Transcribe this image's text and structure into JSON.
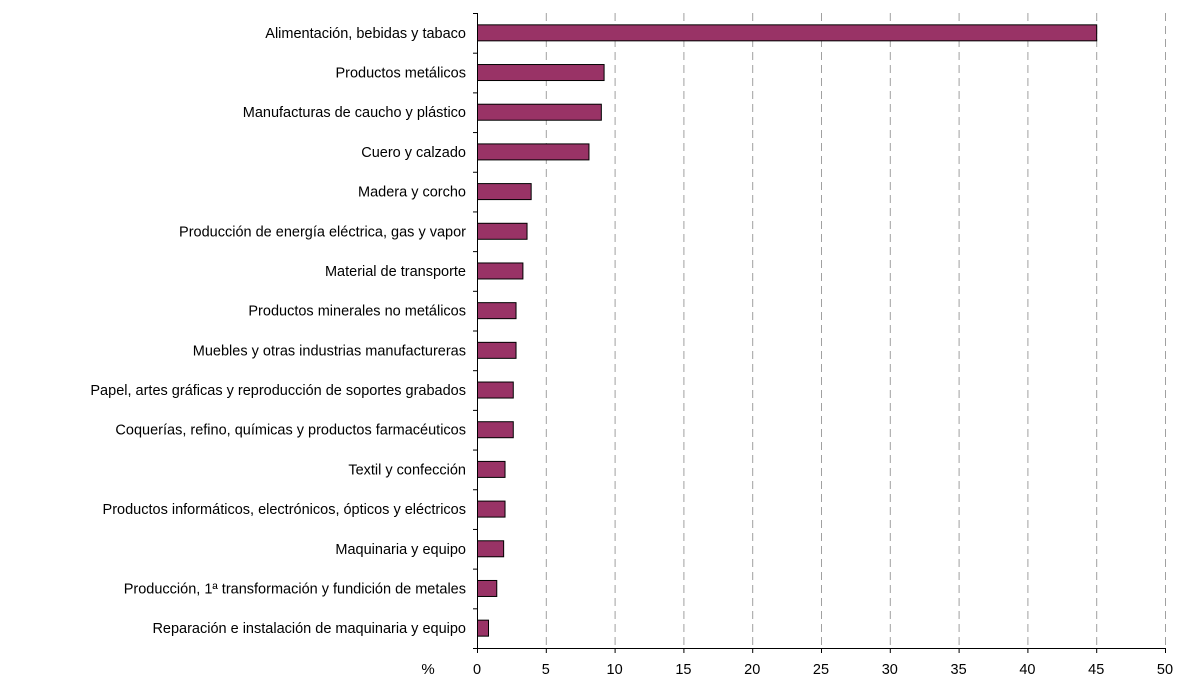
{
  "chart_data": {
    "type": "bar",
    "orientation": "horizontal",
    "categories": [
      "Alimentación, bebidas y tabaco",
      "Productos  metálicos",
      "Manufacturas de caucho y plástico",
      "Cuero y calzado",
      "Madera y corcho",
      "Producción de energía eléctrica, gas y vapor",
      "Material de transporte",
      "Productos minerales no metálicos",
      "Muebles y otras industrias manufactureras",
      "Papel, artes gráficas y reproducción de soportes grabados",
      "Coquerías, refino, químicas y productos farmacéuticos",
      "Textil y confección",
      "Productos informáticos, electrónicos, ópticos y eléctricos",
      "Maquinaria y equipo",
      "Producción, 1ª transformación y fundición de metales",
      "Reparación e instalación de maquinaria y equipo"
    ],
    "values": [
      45.0,
      9.2,
      9.0,
      8.1,
      3.9,
      3.6,
      3.3,
      2.8,
      2.8,
      2.6,
      2.6,
      2.0,
      2.0,
      1.9,
      1.4,
      0.8
    ],
    "xlabel": "%",
    "xlim": [
      0,
      50
    ],
    "xticks": [
      "0",
      "5",
      "10",
      "15",
      "20",
      "25",
      "30",
      "35",
      "40",
      "45",
      "50"
    ],
    "grid": "vertical dashed",
    "bar_color": "#993366",
    "title": "",
    "ylabel": ""
  }
}
